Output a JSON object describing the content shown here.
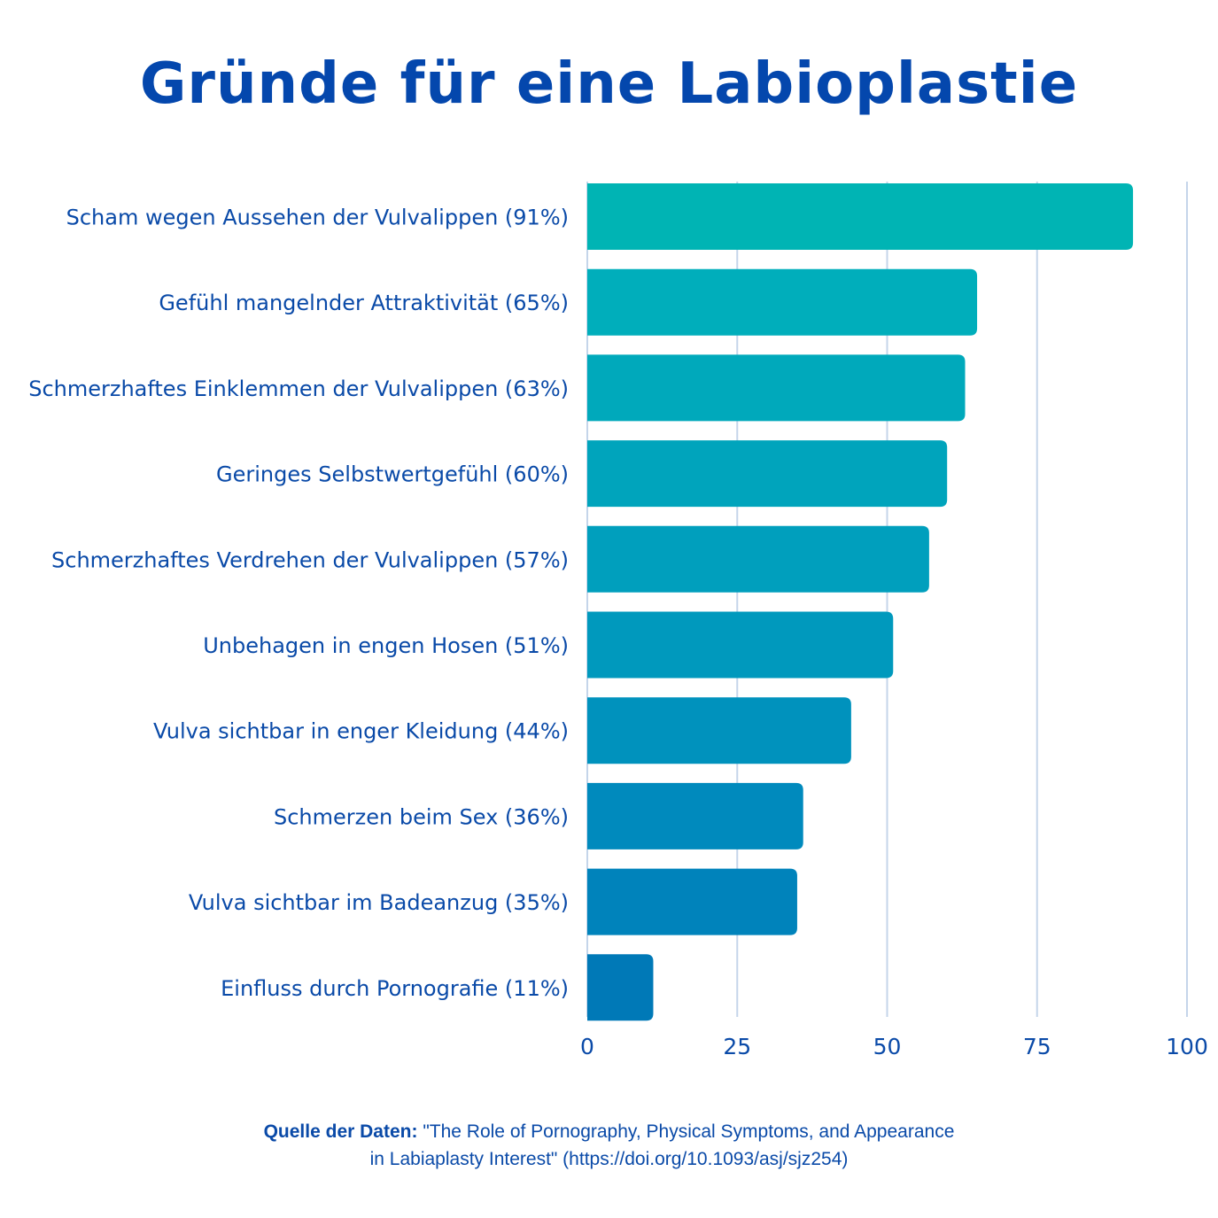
{
  "chart_data": {
    "type": "bar",
    "orientation": "horizontal",
    "title": "Gründe für eine Labioplastie",
    "categories": [
      "Scham wegen Aussehen der Vulvalippen (91%)",
      "Gefühl mangelnder Attraktivität (65%)",
      "Schmerzhaftes Einklemmen der Vulvalippen (63%)",
      "Geringes Selbstwertgefühl (60%)",
      "Schmerzhaftes Verdrehen der Vulvalippen (57%)",
      "Unbehagen in engen Hosen (51%)",
      "Vulva sichtbar in enger Kleidung (44%)",
      "Schmerzen beim Sex (36%)",
      "Vulva sichtbar im Badeanzug (35%)",
      "Einfluss durch Pornografie (11%)"
    ],
    "values": [
      91,
      65,
      63,
      60,
      57,
      51,
      44,
      36,
      35,
      11
    ],
    "xlim": [
      0,
      100
    ],
    "xticks": [
      "0",
      "25",
      "50",
      "75",
      "100"
    ],
    "grid": "vertical",
    "colors": [
      "#00b4b4",
      "#00aebb",
      "#00a9bb",
      "#00a4bc",
      "#009fbd",
      "#0099bd",
      "#0092bd",
      "#008abd",
      "#0083bb",
      "#0079b7"
    ]
  },
  "source": {
    "label": "Quelle der Daten:",
    "text_line1": " \"The Role of Pornography, Physical Symptoms, and Appearance",
    "text_line2": "in Labiaplasty Interest\" (https://doi.org/10.1093/asj/sjz254)"
  }
}
